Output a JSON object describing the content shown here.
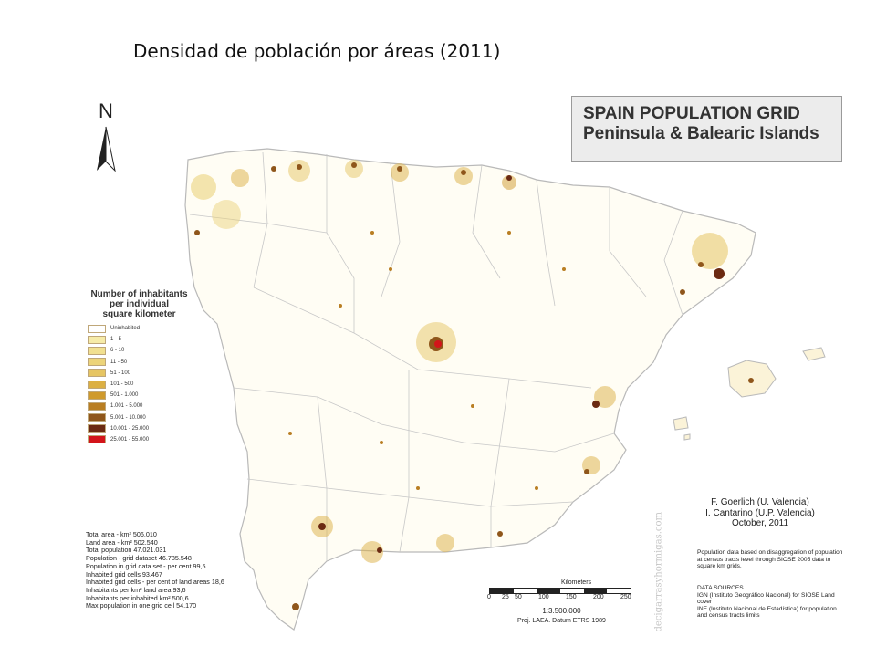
{
  "slide": {
    "title": "Densidad de población por áreas  (2011)"
  },
  "map": {
    "title_line1": "SPAIN POPULATION GRID",
    "title_line2": "Peninsula & Balearic Islands",
    "north": "N",
    "legend": {
      "title_lines": [
        "Number of inhabitants",
        "per individual",
        "square kilometer"
      ],
      "items": [
        {
          "label": "Uninhabited",
          "color": "#ffffff"
        },
        {
          "label": "1 - 5",
          "color": "#f6eba8"
        },
        {
          "label": "6 - 10",
          "color": "#f1e090"
        },
        {
          "label": "11 - 50",
          "color": "#ecd47a"
        },
        {
          "label": "51 - 100",
          "color": "#e6c563"
        },
        {
          "label": "101 - 500",
          "color": "#dcb043"
        },
        {
          "label": "501 - 1.000",
          "color": "#cf9a2c"
        },
        {
          "label": "1.001 - 5.000",
          "color": "#b97e22"
        },
        {
          "label": "5.001 - 10.000",
          "color": "#8f561b"
        },
        {
          "label": "10.001 - 25.000",
          "color": "#6b2a12"
        },
        {
          "label": "25.001 - 55.000",
          "color": "#d3141a"
        }
      ]
    },
    "stats": [
      "Total area - km² 506.010",
      "Land area - km² 502.540",
      "Total population 47.021.031",
      "Population - grid dataset 46.785.548",
      "Population in grid data set - per cent 99,5",
      "Inhabited grid cells 93.467",
      "Inhabited grid cells - per cent of land areas 18,6",
      "Inhabitants per km² land area 93,6",
      "Inhabitants per inhabited km² 500,6",
      "Max population in one grid cell 54.170"
    ],
    "scale": {
      "title": "Kilometers",
      "ticks": [
        "0",
        "25",
        "50",
        "100",
        "150",
        "200",
        "250"
      ],
      "ratio": "1:3.500.000",
      "projection": "Proj. LAEA. Datum ETRS 1989"
    },
    "authors": [
      "F. Goerlich (U. Valencia)",
      "I. Cantarino (U.P. Valencia)",
      "October, 2011"
    ],
    "method_note": "Population data based on disaggregation of population at census tracts level through SIOSE 2005 data to square km grids.",
    "sources": [
      "DATA SOURCES",
      "IGN (Instituto Geográfico Nacional) for SIOSE Land cover",
      "INE (Instituto Nacional de Estadística) for population and census tracts limits"
    ],
    "watermark": "decigarrasyhormigas.com"
  }
}
